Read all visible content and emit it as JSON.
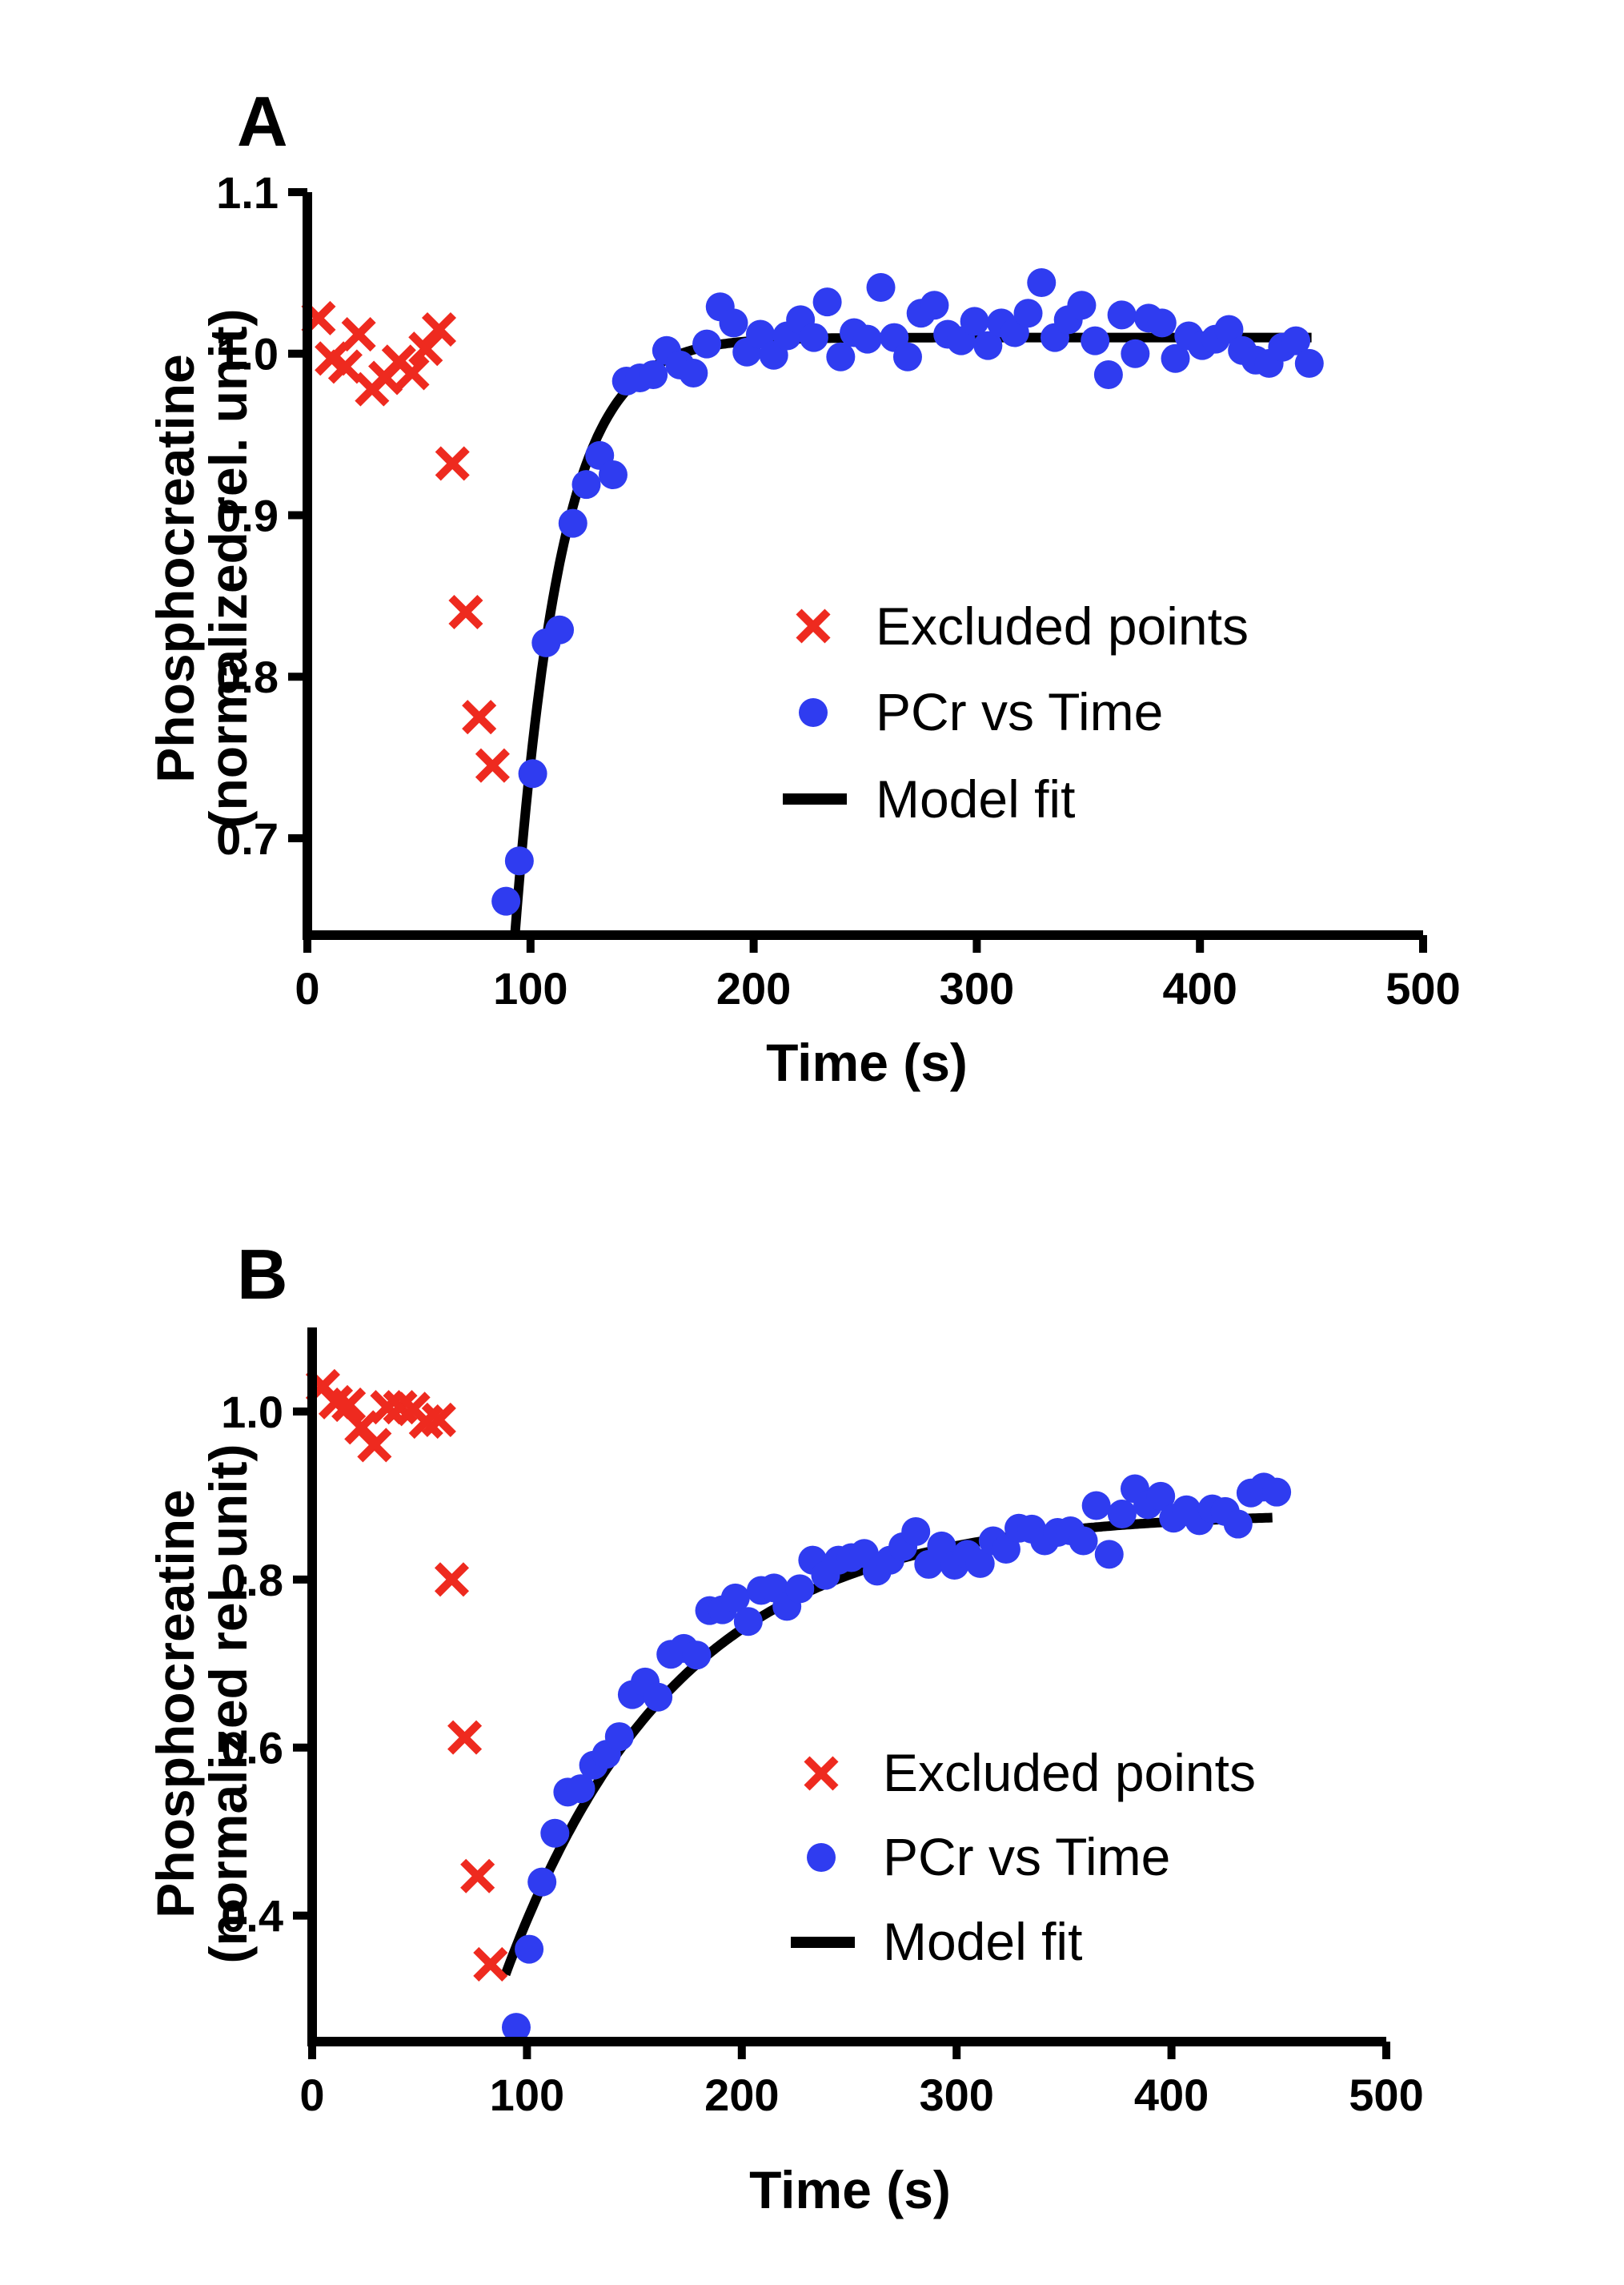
{
  "figure": {
    "background": "#ffffff",
    "colors": {
      "excluded": "#ee2a1f",
      "pcr": "#2f3cf0",
      "fit": "#000000",
      "axis": "#000000"
    },
    "legend_entries": [
      {
        "symbol": "cross-icon",
        "label": "Excluded points"
      },
      {
        "symbol": "dot-icon",
        "label": "PCr vs Time"
      },
      {
        "symbol": "line-icon",
        "label": "Model fit"
      }
    ]
  },
  "chart_data": [
    {
      "panel": "A",
      "type": "scatter",
      "xlabel": "Time (s)",
      "ylabel_line1": "Phosphocreatine",
      "ylabel_line2": "(normalized  rel. unit)",
      "xlim": [
        0,
        500
      ],
      "ylim": [
        0.64,
        1.1
      ],
      "xticks": [
        "0",
        "100",
        "200",
        "300",
        "400",
        "500"
      ],
      "yticks": [
        "0.7",
        "0.8",
        "0.9",
        "1.0",
        "1.1"
      ],
      "legend": [
        "Excluded points",
        "PCr vs Time",
        "Model fit"
      ],
      "series": [
        {
          "name": "Excluded points",
          "marker": "x",
          "x": [
            5,
            11,
            17,
            23,
            29,
            35,
            41,
            47,
            53,
            59,
            65,
            71,
            77,
            83
          ],
          "y": [
            1.022,
            0.997,
            0.992,
            1.012,
            0.978,
            0.985,
            0.995,
            0.988,
            1.003,
            1.015,
            0.932,
            0.84,
            0.775,
            0.745
          ]
        },
        {
          "name": "PCr vs Time",
          "marker": "o",
          "x": [
            89,
            95,
            101,
            107,
            113,
            119,
            125,
            131,
            137,
            143,
            149,
            155,
            161,
            167,
            173,
            179,
            185,
            191,
            197,
            203,
            209,
            215,
            221,
            227,
            233,
            239,
            245,
            251,
            257,
            263,
            269,
            275,
            281,
            287,
            293,
            299,
            305,
            311,
            317,
            323,
            329,
            335,
            341,
            347,
            353,
            359,
            365,
            371,
            377,
            383,
            389,
            395,
            401,
            407,
            413,
            419,
            425,
            431,
            437,
            443,
            449
          ],
          "y": [
            0.661,
            0.686,
            0.74,
            0.821,
            0.829,
            0.895,
            0.919,
            0.937,
            0.925,
            0.983,
            0.985,
            0.987,
            1.002,
            0.993,
            0.988,
            1.006,
            1.029,
            1.019,
            1.001,
            1.012,
            0.999,
            1.011,
            1.021,
            1.01,
            1.032,
            0.998,
            1.013,
            1.009,
            1.041,
            1.01,
            0.998,
            1.025,
            1.03,
            1.012,
            1.008,
            1.02,
            1.005,
            1.019,
            1.013,
            1.025,
            1.044,
            1.01,
            1.021,
            1.03,
            1.008,
            0.987,
            1.024,
            1.0,
            1.022,
            1.019,
            0.997,
            1.011,
            1.005,
            1.009,
            1.015,
            1.002,
            0.996,
            0.994,
            1.004,
            1.008,
            0.994
          ]
        },
        {
          "name": "Model fit",
          "marker": "line",
          "model": "y = 1.010 - 0.370*exp(-(t-93)/20.6)",
          "y_max": 1.01,
          "amplitude": 0.37,
          "t0": 93,
          "tau": 20.6,
          "x_range": [
            93,
            450
          ]
        }
      ]
    },
    {
      "panel": "B",
      "type": "scatter",
      "xlabel": "Time (s)",
      "ylabel_line1": "Phosphocreatine",
      "ylabel_line2": "(normalized  rel. unit)",
      "xlim": [
        0,
        500
      ],
      "ylim": [
        0.25,
        1.1
      ],
      "xticks": [
        "0",
        "100",
        "200",
        "300",
        "400",
        "500"
      ],
      "yticks": [
        "0.4",
        "0.6",
        "0.8",
        "1.0"
      ],
      "legend": [
        "Excluded points",
        "PCr vs Time",
        "Model fit"
      ],
      "series": [
        {
          "name": "Excluded points",
          "marker": "x",
          "x": [
            5,
            11,
            17,
            23,
            29,
            35,
            41,
            47,
            53,
            59,
            65,
            71,
            77,
            83
          ],
          "y": [
            1.03,
            1.011,
            1.008,
            0.981,
            0.96,
            1.005,
            1.005,
            1.003,
            0.988,
            0.99,
            0.8,
            0.612,
            0.447,
            0.342
          ]
        },
        {
          "name": "PCr vs Time",
          "marker": "o",
          "x": [
            95,
            101,
            107,
            113,
            119,
            125,
            131,
            137,
            143,
            149,
            155,
            161,
            167,
            173,
            179,
            185,
            191,
            197,
            203,
            209,
            215,
            221,
            227,
            233,
            239,
            245,
            251,
            257,
            263,
            269,
            275,
            281,
            287,
            293,
            299,
            305,
            311,
            317,
            323,
            329,
            335,
            341,
            347,
            353,
            359,
            365,
            371,
            377,
            383,
            389,
            395,
            401,
            407,
            413,
            419,
            425,
            431,
            437,
            443,
            449
          ],
          "y": [
            0.267,
            0.36,
            0.44,
            0.498,
            0.547,
            0.551,
            0.579,
            0.592,
            0.613,
            0.663,
            0.678,
            0.66,
            0.711,
            0.718,
            0.71,
            0.763,
            0.764,
            0.778,
            0.75,
            0.787,
            0.79,
            0.768,
            0.789,
            0.823,
            0.805,
            0.823,
            0.826,
            0.831,
            0.81,
            0.823,
            0.839,
            0.857,
            0.818,
            0.84,
            0.817,
            0.83,
            0.819,
            0.846,
            0.836,
            0.861,
            0.86,
            0.846,
            0.856,
            0.858,
            0.846,
            0.888,
            0.83,
            0.878,
            0.908,
            0.889,
            0.899,
            0.873,
            0.883,
            0.87,
            0.884,
            0.881,
            0.866,
            0.903,
            0.91,
            0.904
          ]
        },
        {
          "name": "Model fit",
          "marker": "line",
          "model": "y = 0.880 - 0.550*exp(-(t-90)/80)",
          "y_max": 0.88,
          "amplitude": 0.55,
          "t0": 90,
          "tau": 80,
          "x_range": [
            90,
            447
          ]
        }
      ]
    }
  ]
}
